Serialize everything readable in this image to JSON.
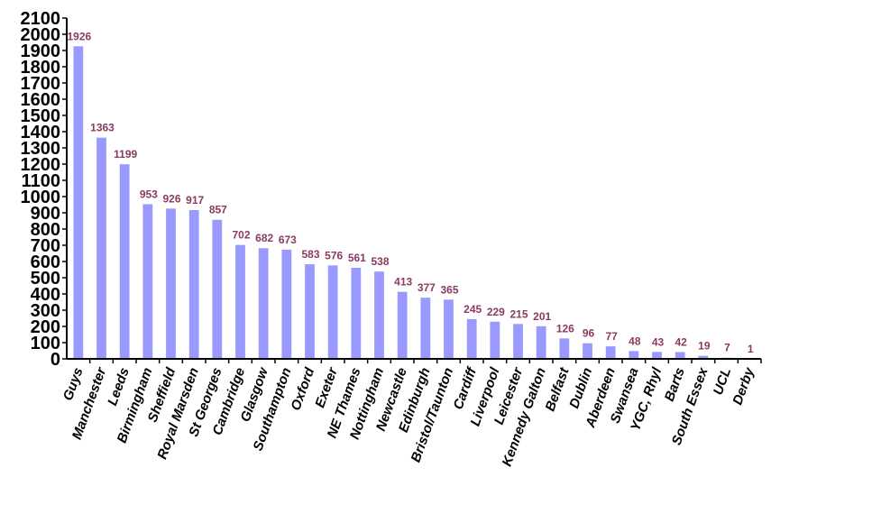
{
  "chart_data": {
    "type": "bar",
    "title": "",
    "xlabel": "",
    "ylabel": "",
    "ylim": [
      0,
      2100
    ],
    "y_ticks": [
      0,
      100,
      200,
      300,
      400,
      500,
      600,
      700,
      800,
      900,
      1000,
      1100,
      1200,
      1300,
      1400,
      1500,
      1600,
      1700,
      1800,
      1900,
      2000,
      2100
    ],
    "categories": [
      "Guys",
      "Manchester",
      "Leeds",
      "Birmingham",
      "Sheffield",
      "Royal Marsden",
      "St Georges",
      "Cambridge",
      "Glasgow",
      "Southampton",
      "Oxford",
      "Exeter",
      "NE Thames",
      "Nottingham",
      "Newcastle",
      "Edinburgh",
      "Bristol/Taunton",
      "Cardiff",
      "Liverpool",
      "Leicester",
      "Kennedy Galton",
      "Belfast",
      "Dublin",
      "Aberdeen",
      "Swansea",
      "YGC, Rhyl",
      "Barts",
      "South Essex",
      "UCL",
      "Derby"
    ],
    "values": [
      1926,
      1363,
      1199,
      953,
      926,
      917,
      857,
      702,
      682,
      673,
      583,
      576,
      561,
      538,
      413,
      377,
      365,
      245,
      229,
      215,
      201,
      126,
      96,
      77,
      48,
      43,
      42,
      19,
      7,
      1
    ],
    "grid": false,
    "legend": "none",
    "colors": {
      "bar": "#9999ff",
      "data_label": "#8b3a62",
      "axis": "#000000",
      "tick_label": "#000000"
    }
  }
}
